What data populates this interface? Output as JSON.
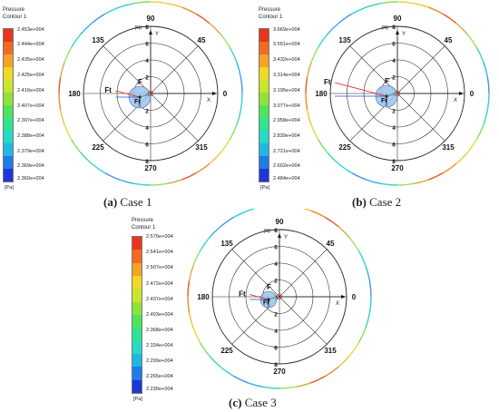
{
  "colorbar_colors": [
    "#1f37d8",
    "#1f7be6",
    "#20b8e2",
    "#26d9c8",
    "#2fe48f",
    "#4fe55a",
    "#8fe23a",
    "#c9e62b",
    "#f0d72a",
    "#f5a325",
    "#f26a22",
    "#e8361d"
  ],
  "radial_ticks": [
    "8",
    "6",
    "4",
    "2",
    "0",
    "2",
    "4",
    "6",
    "8"
  ],
  "radial_unit": "(N)",
  "axis_y": "Y",
  "axis_x": "X",
  "angle_labels": {
    "a90": "90",
    "a45": "45",
    "a0": "0",
    "a315": "315",
    "a270": "270",
    "a225": "225",
    "a180": "180",
    "a135": "135"
  },
  "panels": [
    {
      "legend": {
        "title1": "Pressure",
        "title2": "Contour 1",
        "unit": "[Pa]",
        "ticks": [
          "2.453e+004",
          "2.444e+004",
          "2.435e+004",
          "2.425e+004",
          "2.416e+004",
          "2.407e+004",
          "2.397e+004",
          "2.388e+004",
          "2.379e+004",
          "2.369e+004",
          "2.360e+004"
        ]
      },
      "forces": {
        "ft": "Ft",
        "f": "F",
        "fr": "Fr"
      },
      "caption": {
        "letter": "(a)",
        "text": " Case 1"
      }
    },
    {
      "legend": {
        "title1": "Pressure",
        "title2": "Contour 1",
        "unit": "[Pa]",
        "ticks": [
          "3.669e+004",
          "3.551e+004",
          "3.432e+004",
          "3.314e+004",
          "3.195e+004",
          "3.077e+004",
          "2.958e+004",
          "2.839e+004",
          "2.721e+004",
          "2.602e+004",
          "2.484e+004"
        ]
      },
      "forces": {
        "ft": "Ft",
        "f": "F",
        "fr": "Fr"
      },
      "caption": {
        "letter": "(b)",
        "text": " Case 2"
      }
    },
    {
      "legend": {
        "title1": "Pressure",
        "title2": "Contour 1",
        "unit": "[Pa]",
        "ticks": [
          "2.576e+004",
          "2.541e+004",
          "2.507e+004",
          "2.472e+004",
          "2.437e+004",
          "2.403e+004",
          "2.368e+004",
          "2.334e+004",
          "2.299e+004",
          "2.265e+004",
          "2.230e+004"
        ]
      },
      "forces": {
        "ft": "Ft",
        "f": "F",
        "fr": "Fr"
      },
      "caption": {
        "letter": "(c)",
        "text": " Case 3"
      }
    }
  ]
}
